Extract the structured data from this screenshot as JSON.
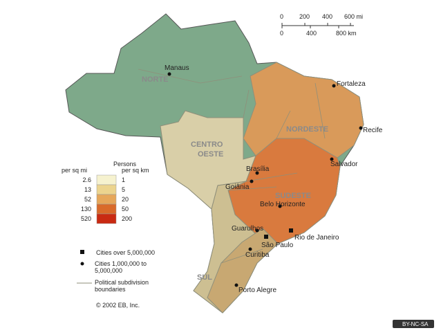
{
  "scale": {
    "miles": [
      "0",
      "200",
      "400",
      "600 mi"
    ],
    "kilometers": [
      "0",
      "400",
      "800 km"
    ]
  },
  "regions": {
    "norte": "NORTE",
    "centro_oeste": [
      "CENTRO",
      "OESTE"
    ],
    "nordeste": "NORDESTE",
    "sudeste": "SUDESTE",
    "sul": "SUL"
  },
  "cities": [
    "Manaus",
    "Fortaleza",
    "Recife",
    "Salvador",
    "Brasília",
    "Goiânia",
    "Belo Horizonte",
    "Rio de Janeiro",
    "São Paulo",
    "Guarulhos",
    "Curitiba",
    "Porto Alegre"
  ],
  "legend": {
    "title": "Persons",
    "unit_mi": "per sq mi",
    "unit_km": "per sq km",
    "rows": [
      [
        "2.6",
        "1"
      ],
      [
        "13",
        "5"
      ],
      [
        "52",
        "20"
      ],
      [
        "130",
        "50"
      ],
      [
        "520",
        "200"
      ]
    ],
    "symbols": [
      "Cities over 5,000,000",
      "Cities 1,000,000 to 5,000,000",
      "Political subdivision boundaries"
    ],
    "copyright": "© 2002 EB, Inc."
  },
  "badge": "BY-NC-SA"
}
